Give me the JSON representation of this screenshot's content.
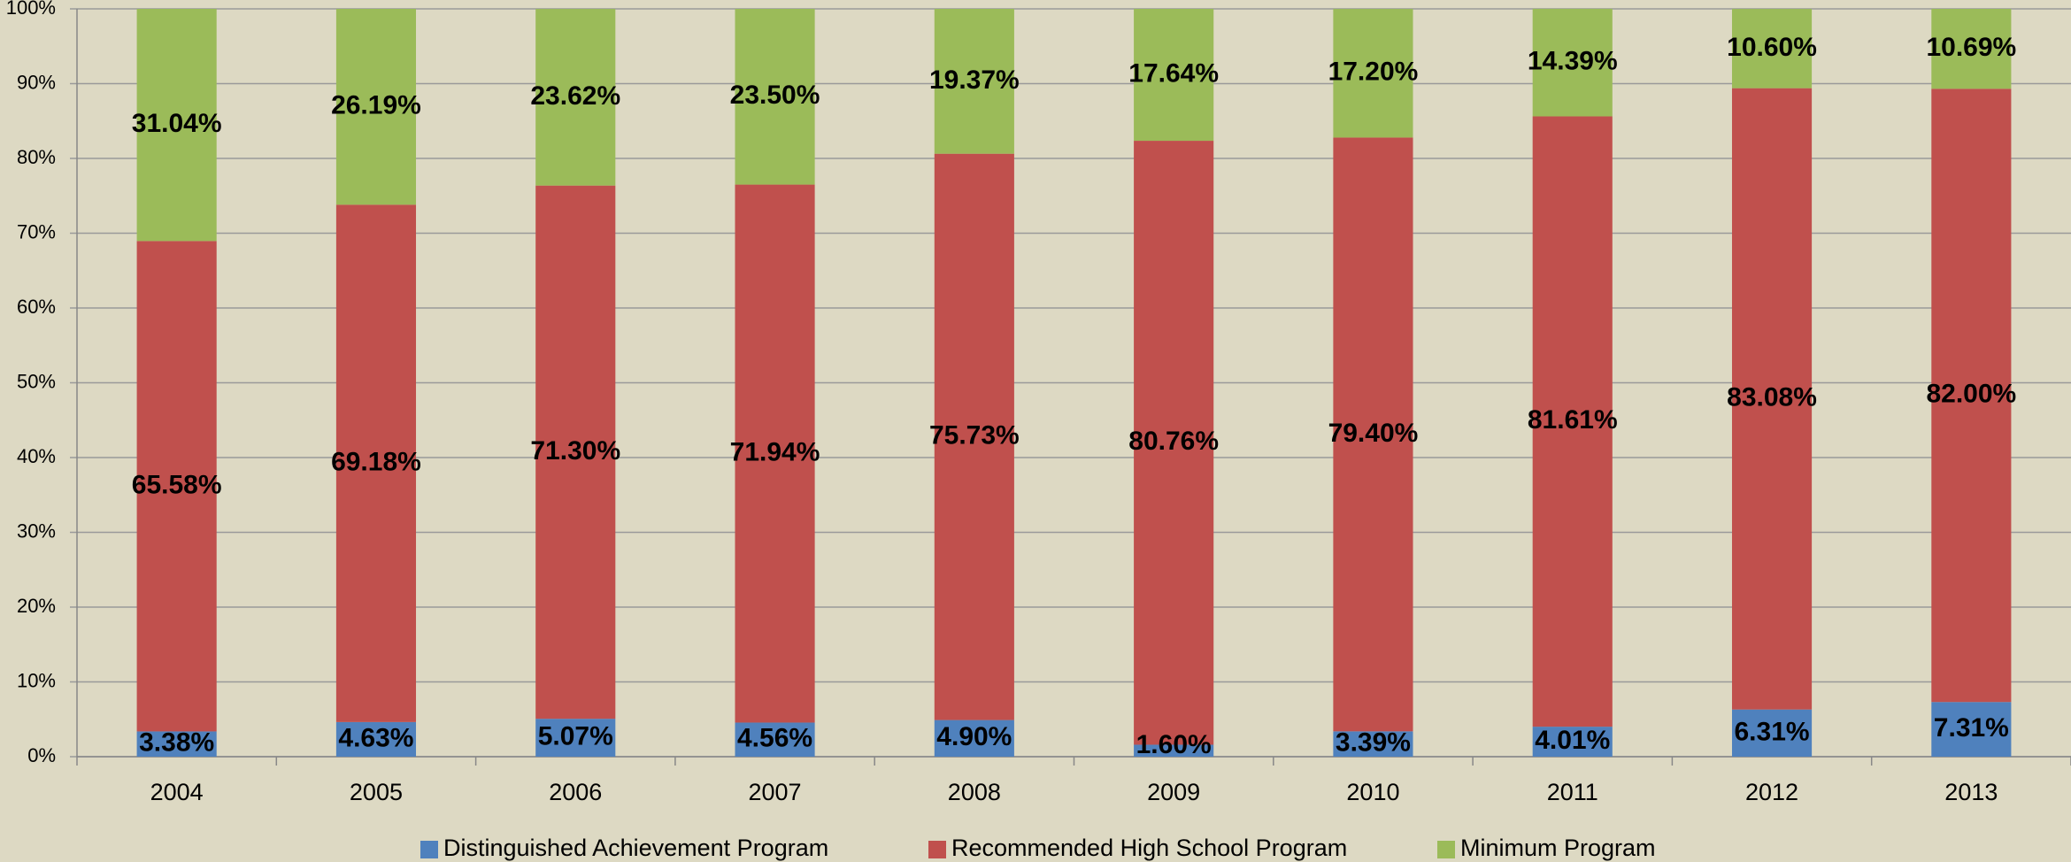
{
  "chart_data": {
    "type": "stacked_bar",
    "categories": [
      "2004",
      "2005",
      "2006",
      "2007",
      "2008",
      "2009",
      "2010",
      "2011",
      "2012",
      "2013"
    ],
    "series": [
      {
        "name": "Distinguished Achievement Program",
        "color": "#4f81bd",
        "values": [
          3.38,
          4.63,
          5.07,
          4.56,
          4.9,
          1.6,
          3.39,
          4.01,
          6.31,
          7.31
        ],
        "value_labels": [
          "3.38%",
          "4.63%",
          "5.07%",
          "4.56%",
          "4.90%",
          "1.60%",
          "3.39%",
          "4.01%",
          "6.31%",
          "7.31%"
        ]
      },
      {
        "name": "Recommended High School Program",
        "color": "#c0504d",
        "values": [
          65.58,
          69.18,
          71.3,
          71.94,
          75.73,
          80.76,
          79.4,
          81.61,
          83.08,
          82.0
        ],
        "value_labels": [
          "65.58%",
          "69.18%",
          "71.30%",
          "71.94%",
          "75.73%",
          "80.76%",
          "79.40%",
          "81.61%",
          "83.08%",
          "82.00%"
        ]
      },
      {
        "name": "Minimum Program",
        "color": "#9bbb59",
        "values": [
          31.04,
          26.19,
          23.62,
          23.5,
          19.37,
          17.64,
          17.2,
          14.39,
          10.6,
          10.69
        ],
        "value_labels": [
          "31.04%",
          "26.19%",
          "23.62%",
          "23.50%",
          "19.37%",
          "17.64%",
          "17.20%",
          "14.39%",
          "10.60%",
          "10.69%"
        ]
      }
    ],
    "ylim": [
      0,
      100
    ],
    "yticks": [
      {
        "value": 0,
        "label": "0%"
      },
      {
        "value": 10,
        "label": "10%"
      },
      {
        "value": 20,
        "label": "20%"
      },
      {
        "value": 30,
        "label": "30%"
      },
      {
        "value": 40,
        "label": "40%"
      },
      {
        "value": 50,
        "label": "50%"
      },
      {
        "value": 60,
        "label": "60%"
      },
      {
        "value": 70,
        "label": "70%"
      },
      {
        "value": 80,
        "label": "80%"
      },
      {
        "value": 90,
        "label": "90%"
      },
      {
        "value": 100,
        "label": "100%"
      }
    ],
    "grid": true,
    "legend": "bottom"
  }
}
